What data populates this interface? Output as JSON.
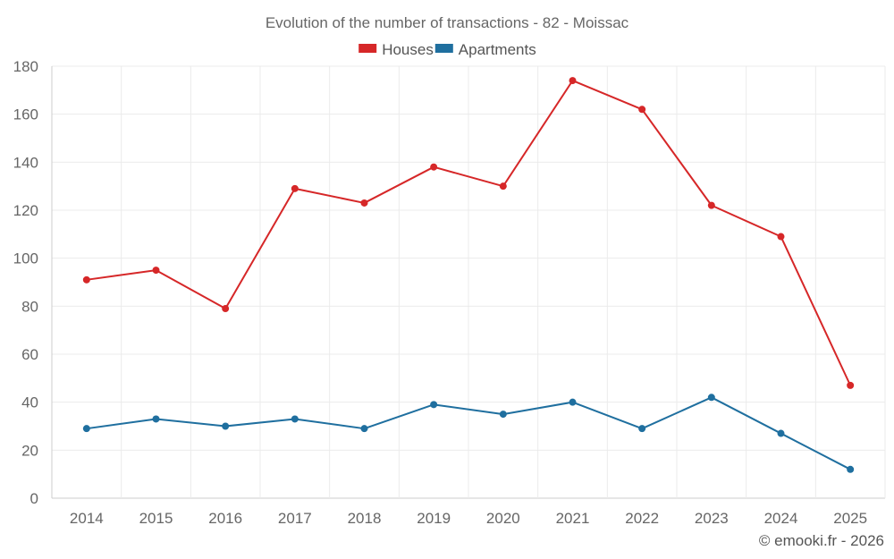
{
  "chart_data": {
    "type": "line",
    "title": "Evolution of the number of transactions - 82 - Moissac",
    "categories": [
      "2014",
      "2015",
      "2016",
      "2017",
      "2018",
      "2019",
      "2020",
      "2021",
      "2022",
      "2023",
      "2024",
      "2025"
    ],
    "series": [
      {
        "name": "Houses",
        "color": "#d62728",
        "values": [
          91,
          95,
          79,
          129,
          123,
          138,
          130,
          174,
          162,
          122,
          109,
          47
        ]
      },
      {
        "name": "Apartments",
        "color": "#1f6f9f",
        "values": [
          29,
          33,
          30,
          33,
          29,
          39,
          35,
          40,
          29,
          42,
          27,
          12
        ]
      }
    ],
    "xlabel": "",
    "ylabel": "",
    "ylim": [
      0,
      180
    ],
    "yticks": [
      0,
      20,
      40,
      60,
      80,
      100,
      120,
      140,
      160,
      180
    ],
    "grid": true,
    "legend_position": "top-center"
  },
  "credit": "© emooki.fr - 2026"
}
